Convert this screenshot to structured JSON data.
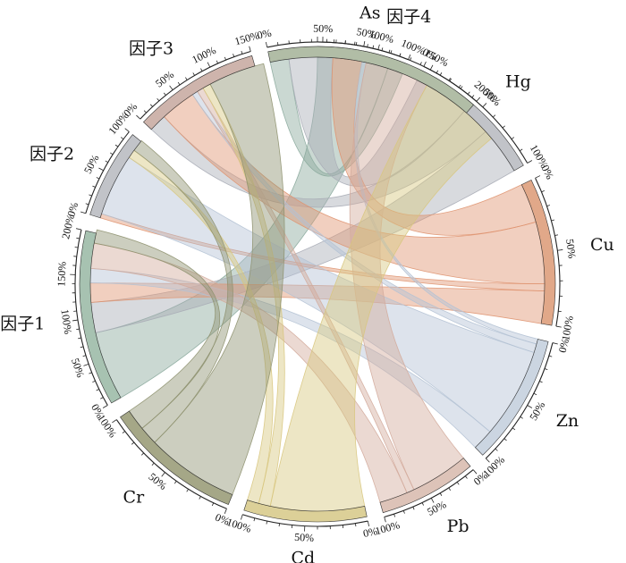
{
  "chart_data": {
    "type": "chord",
    "segments": [
      {
        "id": "As",
        "label": "As",
        "scale": 1,
        "color": "#a7b9ae",
        "ticks": [
          "50%",
          "100%"
        ]
      },
      {
        "id": "Hg",
        "label": "Hg",
        "scale": 1,
        "color": "#c1c3c8",
        "ticks": [
          "0%",
          "50%",
          "100%"
        ]
      },
      {
        "id": "Cu",
        "label": "Cu",
        "scale": 1,
        "color": "#e1a889",
        "ticks": [
          "0%",
          "50%",
          "100%"
        ]
      },
      {
        "id": "Zn",
        "label": "Zn",
        "scale": 1,
        "color": "#cbd5e1",
        "ticks": [
          "0%",
          "50%",
          "100%"
        ]
      },
      {
        "id": "Pb",
        "label": "Pb",
        "scale": 1,
        "color": "#ddc3b8",
        "ticks": [
          "0%",
          "50%",
          "100%"
        ]
      },
      {
        "id": "Cd",
        "label": "Cd",
        "scale": 1,
        "color": "#dcd098",
        "ticks": [
          "0%",
          "50%",
          "100%"
        ]
      },
      {
        "id": "Cr",
        "label": "Cr",
        "scale": 1,
        "color": "#a5a787",
        "ticks": [
          "0%",
          "50%",
          "100%"
        ]
      },
      {
        "id": "F1",
        "label": "因子1",
        "scale": 2,
        "color": "#a7c2b1",
        "ticks": [
          "0%",
          "50%",
          "100%",
          "150%",
          "200%"
        ]
      },
      {
        "id": "F2",
        "label": "因子2",
        "scale": 1,
        "color": "#c1c3c8",
        "ticks": [
          "0%",
          "50%",
          "100%"
        ]
      },
      {
        "id": "F3",
        "label": "因子3",
        "scale": 1.5,
        "color": "#ceb4ac",
        "ticks": [
          "0%",
          "50%",
          "100%",
          "150%"
        ]
      },
      {
        "id": "F4",
        "label": "因子4",
        "scale": 2,
        "color": "#b1bda6",
        "ticks": [
          "0%",
          "50%",
          "100%",
          "150%",
          "200%"
        ]
      }
    ],
    "links": [
      {
        "source": "As",
        "target": "F1",
        "value": 0.82,
        "color": "#8aa89c"
      },
      {
        "source": "As",
        "target": "F4",
        "value": 0.18,
        "color": "#8aa89c"
      },
      {
        "source": "Hg",
        "target": "F4",
        "value": 0.42,
        "color": "#a9acb6"
      },
      {
        "source": "Hg",
        "target": "F3",
        "value": 0.22,
        "color": "#a9acb6"
      },
      {
        "source": "Hg",
        "target": "F1",
        "value": 0.36,
        "color": "#a9acb6"
      },
      {
        "source": "Cu",
        "target": "F4",
        "value": 0.28,
        "color": "#df9470"
      },
      {
        "source": "Cu",
        "target": "F3",
        "value": 0.44,
        "color": "#df9470"
      },
      {
        "source": "Cu",
        "target": "F2",
        "value": 0.05,
        "color": "#df9470"
      },
      {
        "source": "Cu",
        "target": "F1",
        "value": 0.23,
        "color": "#df9470"
      },
      {
        "source": "Zn",
        "target": "F4",
        "value": 0.04,
        "color": "#b4c2d4"
      },
      {
        "source": "Zn",
        "target": "F3",
        "value": 0.07,
        "color": "#b4c2d4"
      },
      {
        "source": "Zn",
        "target": "F2",
        "value": 0.72,
        "color": "#b4c2d4"
      },
      {
        "source": "Zn",
        "target": "F1",
        "value": 0.17,
        "color": "#b4c2d4"
      },
      {
        "source": "Pb",
        "target": "F4",
        "value": 0.62,
        "color": "#d3ab9c"
      },
      {
        "source": "Pb",
        "target": "F3",
        "value": 0.08,
        "color": "#d3ab9c"
      },
      {
        "source": "Pb",
        "target": "F1",
        "value": 0.3,
        "color": "#d3ab9c"
      },
      {
        "source": "Cd",
        "target": "F4",
        "value": 0.8,
        "color": "#d8c77e"
      },
      {
        "source": "Cd",
        "target": "F3",
        "value": 0.1,
        "color": "#d8c77e"
      },
      {
        "source": "Cd",
        "target": "F2",
        "value": 0.1,
        "color": "#d8c77e"
      },
      {
        "source": "Cr",
        "target": "F3",
        "value": 0.7,
        "color": "#8f9270"
      },
      {
        "source": "Cr",
        "target": "F2",
        "value": 0.14,
        "color": "#8f9270"
      },
      {
        "source": "Cr",
        "target": "F1",
        "value": 0.16,
        "color": "#8f9270"
      }
    ]
  }
}
